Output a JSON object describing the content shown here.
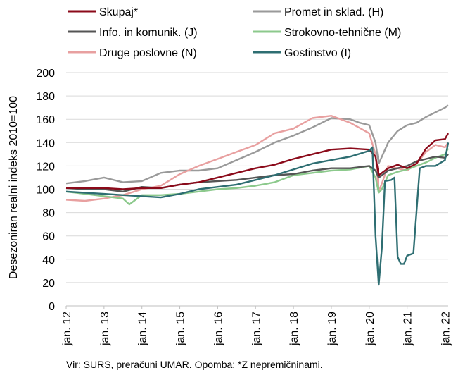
{
  "chart_data": {
    "type": "line",
    "ylabel": "Desezoniran realni indeks 2010=100",
    "ylim": [
      0,
      200
    ],
    "yticks": [
      0,
      20,
      40,
      60,
      80,
      100,
      120,
      140,
      160,
      180,
      200
    ],
    "xtick_labels": [
      "jan. 12",
      "jan. 13",
      "jan. 14",
      "jan. 15",
      "jan. 16",
      "jan. 17",
      "jan. 18",
      "jan. 19",
      "jan. 20",
      "jan. 21",
      "jan. 22"
    ],
    "x_start": "2012-01",
    "x_end": "2022-02",
    "grid": "horizontal",
    "legend_position": "top",
    "source_note": "Vir: SURS, preračuni UMAR. Opomba: *Z nepremičninami.",
    "series": [
      {
        "name": "Promet in sklad. (H)",
        "color": "#9a9a9a",
        "points": [
          [
            "2012-01",
            105
          ],
          [
            "2012-07",
            107
          ],
          [
            "2013-01",
            110
          ],
          [
            "2013-07",
            106
          ],
          [
            "2014-01",
            107
          ],
          [
            "2014-07",
            114
          ],
          [
            "2015-01",
            116
          ],
          [
            "2015-07",
            116
          ],
          [
            "2016-01",
            118
          ],
          [
            "2016-07",
            125
          ],
          [
            "2017-01",
            132
          ],
          [
            "2017-07",
            140
          ],
          [
            "2018-01",
            146
          ],
          [
            "2018-07",
            153
          ],
          [
            "2019-01",
            161
          ],
          [
            "2019-07",
            160
          ],
          [
            "2019-10",
            157
          ],
          [
            "2020-01",
            155
          ],
          [
            "2020-03",
            140
          ],
          [
            "2020-04",
            122
          ],
          [
            "2020-05",
            128
          ],
          [
            "2020-07",
            140
          ],
          [
            "2020-10",
            150
          ],
          [
            "2021-01",
            155
          ],
          [
            "2021-04",
            157
          ],
          [
            "2021-07",
            162
          ],
          [
            "2021-10",
            166
          ],
          [
            "2022-01",
            170
          ],
          [
            "2022-02",
            172
          ]
        ]
      },
      {
        "name": "Druge poslovne (N)",
        "color": "#e8a0a0",
        "points": [
          [
            "2012-01",
            91
          ],
          [
            "2012-07",
            90
          ],
          [
            "2013-01",
            92
          ],
          [
            "2013-07",
            95
          ],
          [
            "2014-01",
            100
          ],
          [
            "2014-07",
            103
          ],
          [
            "2015-01",
            113
          ],
          [
            "2015-07",
            120
          ],
          [
            "2016-01",
            126
          ],
          [
            "2016-07",
            132
          ],
          [
            "2017-01",
            138
          ],
          [
            "2017-07",
            148
          ],
          [
            "2018-01",
            152
          ],
          [
            "2018-07",
            161
          ],
          [
            "2019-01",
            163
          ],
          [
            "2019-07",
            157
          ],
          [
            "2020-01",
            148
          ],
          [
            "2020-03",
            130
          ],
          [
            "2020-04",
            98
          ],
          [
            "2020-05",
            105
          ],
          [
            "2020-07",
            120
          ],
          [
            "2020-10",
            118
          ],
          [
            "2021-01",
            116
          ],
          [
            "2021-04",
            122
          ],
          [
            "2021-07",
            132
          ],
          [
            "2021-10",
            138
          ],
          [
            "2022-01",
            136
          ],
          [
            "2022-02",
            140
          ]
        ]
      },
      {
        "name": "Strokovno-tehnične (M)",
        "color": "#8cc98c",
        "points": [
          [
            "2012-01",
            98
          ],
          [
            "2012-07",
            96
          ],
          [
            "2013-01",
            94
          ],
          [
            "2013-07",
            92
          ],
          [
            "2013-09",
            87
          ],
          [
            "2014-01",
            95
          ],
          [
            "2014-07",
            95
          ],
          [
            "2015-01",
            96
          ],
          [
            "2015-07",
            98
          ],
          [
            "2016-01",
            100
          ],
          [
            "2016-07",
            101
          ],
          [
            "2017-01",
            103
          ],
          [
            "2017-07",
            106
          ],
          [
            "2018-01",
            112
          ],
          [
            "2018-07",
            114
          ],
          [
            "2019-01",
            116
          ],
          [
            "2019-07",
            117
          ],
          [
            "2020-01",
            120
          ],
          [
            "2020-03",
            110
          ],
          [
            "2020-04",
            97
          ],
          [
            "2020-05",
            100
          ],
          [
            "2020-07",
            112
          ],
          [
            "2020-10",
            115
          ],
          [
            "2021-01",
            117
          ],
          [
            "2021-04",
            120
          ],
          [
            "2021-07",
            123
          ],
          [
            "2021-10",
            127
          ],
          [
            "2022-01",
            130
          ],
          [
            "2022-02",
            135
          ]
        ]
      },
      {
        "name": "Info. in komunik. (J)",
        "color": "#555555",
        "points": [
          [
            "2012-01",
            101
          ],
          [
            "2012-07",
            100
          ],
          [
            "2013-01",
            100
          ],
          [
            "2013-07",
            98
          ],
          [
            "2014-01",
            102
          ],
          [
            "2014-07",
            101
          ],
          [
            "2015-01",
            104
          ],
          [
            "2015-07",
            106
          ],
          [
            "2016-01",
            107
          ],
          [
            "2016-07",
            108
          ],
          [
            "2017-01",
            110
          ],
          [
            "2017-07",
            112
          ],
          [
            "2018-01",
            113
          ],
          [
            "2018-07",
            116
          ],
          [
            "2019-01",
            118
          ],
          [
            "2019-07",
            118
          ],
          [
            "2020-01",
            120
          ],
          [
            "2020-03",
            116
          ],
          [
            "2020-04",
            110
          ],
          [
            "2020-05",
            112
          ],
          [
            "2020-07",
            116
          ],
          [
            "2020-10",
            118
          ],
          [
            "2021-01",
            120
          ],
          [
            "2021-04",
            124
          ],
          [
            "2021-07",
            126
          ],
          [
            "2021-10",
            128
          ],
          [
            "2022-01",
            127
          ],
          [
            "2022-02",
            130
          ]
        ]
      },
      {
        "name": "Skupaj*",
        "color": "#8b0a1a",
        "points": [
          [
            "2012-01",
            101
          ],
          [
            "2012-07",
            101
          ],
          [
            "2013-01",
            101
          ],
          [
            "2013-07",
            100
          ],
          [
            "2014-01",
            101
          ],
          [
            "2014-07",
            101
          ],
          [
            "2015-01",
            104
          ],
          [
            "2015-07",
            106
          ],
          [
            "2016-01",
            110
          ],
          [
            "2016-07",
            114
          ],
          [
            "2017-01",
            118
          ],
          [
            "2017-07",
            121
          ],
          [
            "2018-01",
            126
          ],
          [
            "2018-07",
            130
          ],
          [
            "2019-01",
            134
          ],
          [
            "2019-07",
            135
          ],
          [
            "2020-01",
            134
          ],
          [
            "2020-03",
            128
          ],
          [
            "2020-04",
            112
          ],
          [
            "2020-05",
            114
          ],
          [
            "2020-07",
            118
          ],
          [
            "2020-10",
            121
          ],
          [
            "2021-01",
            118
          ],
          [
            "2021-04",
            122
          ],
          [
            "2021-07",
            135
          ],
          [
            "2021-10",
            142
          ],
          [
            "2022-01",
            143
          ],
          [
            "2022-02",
            148
          ]
        ]
      },
      {
        "name": "Gostinstvo (I)",
        "color": "#2e6e72",
        "points": [
          [
            "2012-01",
            98
          ],
          [
            "2012-07",
            97
          ],
          [
            "2013-01",
            96
          ],
          [
            "2013-07",
            95
          ],
          [
            "2014-01",
            94
          ],
          [
            "2014-07",
            93
          ],
          [
            "2015-01",
            96
          ],
          [
            "2015-07",
            100
          ],
          [
            "2016-01",
            102
          ],
          [
            "2016-07",
            104
          ],
          [
            "2017-01",
            108
          ],
          [
            "2017-07",
            112
          ],
          [
            "2018-01",
            117
          ],
          [
            "2018-07",
            122
          ],
          [
            "2019-01",
            125
          ],
          [
            "2019-07",
            128
          ],
          [
            "2020-01",
            133
          ],
          [
            "2020-02",
            136
          ],
          [
            "2020-03",
            60
          ],
          [
            "2020-04",
            18
          ],
          [
            "2020-05",
            50
          ],
          [
            "2020-06",
            107
          ],
          [
            "2020-08",
            108
          ],
          [
            "2020-09",
            110
          ],
          [
            "2020-10",
            42
          ],
          [
            "2020-11",
            36
          ],
          [
            "2020-12",
            36
          ],
          [
            "2021-01",
            43
          ],
          [
            "2021-03",
            45
          ],
          [
            "2021-05",
            118
          ],
          [
            "2021-07",
            120
          ],
          [
            "2021-10",
            120
          ],
          [
            "2022-01",
            125
          ],
          [
            "2022-02",
            140
          ]
        ]
      }
    ]
  }
}
